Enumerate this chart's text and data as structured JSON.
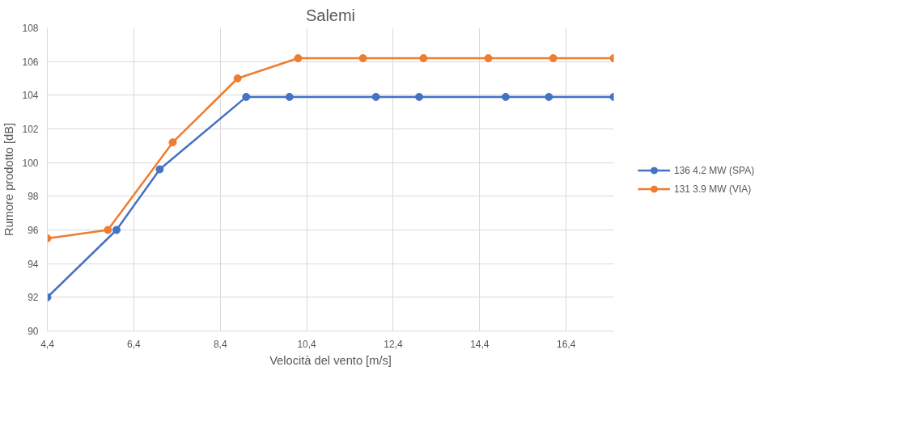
{
  "chart_data": {
    "type": "line",
    "title": "Salemi",
    "xlabel": "Velocità del vento [m/s]",
    "ylabel": "Rumore prodotto [dB]",
    "xlim": [
      4.4,
      17.5
    ],
    "xticks": [
      {
        "value": 4.4,
        "label": "4,4"
      },
      {
        "value": 6.4,
        "label": "6,4"
      },
      {
        "value": 8.4,
        "label": "8,4"
      },
      {
        "value": 10.4,
        "label": "10,4"
      },
      {
        "value": 12.4,
        "label": "12,4"
      },
      {
        "value": 14.4,
        "label": "14,4"
      },
      {
        "value": 16.4,
        "label": "16,4"
      }
    ],
    "ylim": [
      90,
      108
    ],
    "yticks": [
      90,
      92,
      94,
      96,
      98,
      100,
      102,
      104,
      106,
      108
    ],
    "grid": true,
    "legend": "right",
    "marker": "circle",
    "line_style": "solid",
    "series": [
      {
        "name": "136 4.2 MW (SPA)",
        "color": "#4472c4",
        "x": [
          4.4,
          6.0,
          7.0,
          9.0,
          10.0,
          12.0,
          13.0,
          15.0,
          16.0,
          17.5
        ],
        "values": [
          92,
          96,
          99.6,
          103.9,
          103.9,
          103.9,
          103.9,
          103.9,
          103.9,
          103.9
        ]
      },
      {
        "name": "131 3.9 MW (VIA)",
        "color": "#ed7d31",
        "x": [
          4.4,
          5.8,
          7.3,
          8.8,
          10.2,
          11.7,
          13.1,
          14.6,
          16.1,
          17.5
        ],
        "values": [
          95.5,
          96,
          101.2,
          105,
          106.2,
          106.2,
          106.2,
          106.2,
          106.2,
          106.2
        ]
      }
    ]
  }
}
